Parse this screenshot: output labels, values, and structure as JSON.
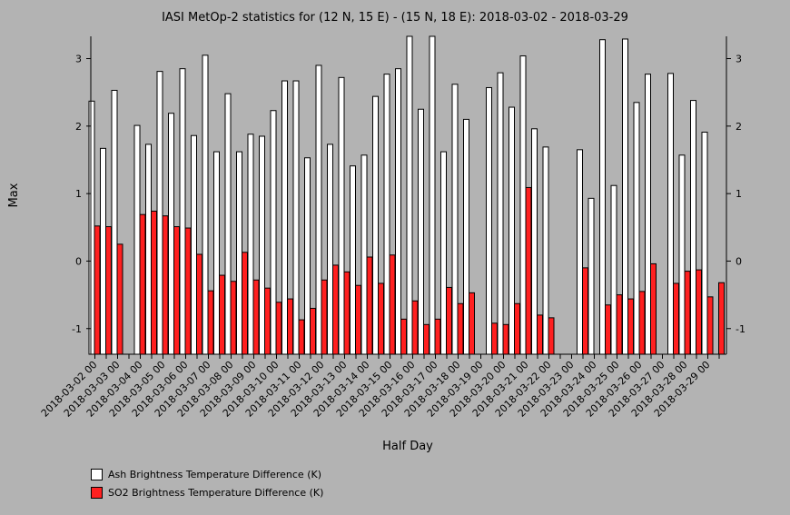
{
  "chart_data": {
    "type": "bar",
    "title": "IASI MetOp-2 statistics for (12 N, 15 E) - (15 N, 18 E): 2018-03-02 - 2018-03-29",
    "xlabel": "Half Day",
    "ylabel": "Max",
    "ylim": [
      -1.38,
      3.33
    ],
    "yticks": [
      -1,
      0,
      1,
      2,
      3
    ],
    "grid": false,
    "legend_position": "bottom-left",
    "categories": [
      "2018-03-02 00",
      "2018-03-02 12",
      "2018-03-03 00",
      "2018-03-03 12",
      "2018-03-04 00",
      "2018-03-04 12",
      "2018-03-05 00",
      "2018-03-05 12",
      "2018-03-06 00",
      "2018-03-06 12",
      "2018-03-07 00",
      "2018-03-07 12",
      "2018-03-08 00",
      "2018-03-08 12",
      "2018-03-09 00",
      "2018-03-09 12",
      "2018-03-10 00",
      "2018-03-10 12",
      "2018-03-11 00",
      "2018-03-11 12",
      "2018-03-12 00",
      "2018-03-12 12",
      "2018-03-13 00",
      "2018-03-13 12",
      "2018-03-14 00",
      "2018-03-14 12",
      "2018-03-15 00",
      "2018-03-15 12",
      "2018-03-16 00",
      "2018-03-16 12",
      "2018-03-17 00",
      "2018-03-17 12",
      "2018-03-18 00",
      "2018-03-18 12",
      "2018-03-19 00",
      "2018-03-19 12",
      "2018-03-20 00",
      "2018-03-20 12",
      "2018-03-21 00",
      "2018-03-21 12",
      "2018-03-22 00",
      "2018-03-22 12",
      "2018-03-23 00",
      "2018-03-23 12",
      "2018-03-24 00",
      "2018-03-24 12",
      "2018-03-25 00",
      "2018-03-25 12",
      "2018-03-26 00",
      "2018-03-26 12",
      "2018-03-27 00",
      "2018-03-27 12",
      "2018-03-28 00",
      "2018-03-28 12",
      "2018-03-29 00",
      "2018-03-29 12"
    ],
    "tick_labels": [
      "2018-03-02 00",
      "2018-03-03 00",
      "2018-03-04 00",
      "2018-03-05 00",
      "2018-03-06 00",
      "2018-03-07 00",
      "2018-03-08 00",
      "2018-03-09 00",
      "2018-03-10 00",
      "2018-03-11 00",
      "2018-03-12 00",
      "2018-03-13 00",
      "2018-03-14 00",
      "2018-03-15 00",
      "2018-03-16 00",
      "2018-03-17 00",
      "2018-03-18 00",
      "2018-03-19 00",
      "2018-03-20 00",
      "2018-03-21 00",
      "2018-03-22 00",
      "2018-03-23 00",
      "2018-03-24 00",
      "2018-03-25 00",
      "2018-03-26 00",
      "2018-03-27 00",
      "2018-03-28 00",
      "2018-03-29 00"
    ],
    "series": [
      {
        "name": "Ash Brightness Temperature Difference (K)",
        "color": "#ffffff",
        "values": [
          2.37,
          1.67,
          2.53,
          null,
          2.01,
          1.73,
          2.81,
          2.19,
          2.85,
          1.86,
          3.05,
          1.62,
          2.48,
          1.62,
          1.88,
          1.85,
          2.23,
          2.67,
          2.67,
          1.53,
          2.9,
          1.73,
          2.72,
          1.41,
          1.57,
          2.44,
          2.77,
          2.85,
          3.33,
          2.25,
          3.33,
          1.62,
          2.62,
          2.1,
          null,
          2.57,
          2.79,
          2.28,
          3.04,
          1.96,
          1.69,
          null,
          null,
          1.65,
          0.93,
          3.28,
          1.12,
          3.29,
          2.35,
          2.77,
          null,
          2.78,
          1.57,
          2.38,
          1.91,
          null
        ]
      },
      {
        "name": "SO2 Brightness Temperature Difference (K)",
        "color": "#ff2020",
        "values": [
          0.52,
          0.51,
          0.25,
          null,
          0.69,
          0.74,
          0.67,
          0.51,
          0.49,
          0.1,
          -0.44,
          -0.21,
          -0.3,
          0.13,
          -0.28,
          -0.4,
          -0.61,
          -0.56,
          -0.87,
          -0.7,
          -0.28,
          -0.06,
          -0.16,
          -0.36,
          0.06,
          -0.33,
          0.09,
          -0.86,
          -0.59,
          -0.94,
          -0.86,
          -0.39,
          -0.63,
          -0.47,
          null,
          -0.92,
          -0.94,
          -0.63,
          1.09,
          -0.8,
          -0.84,
          null,
          null,
          -0.1,
          null,
          -0.65,
          -0.5,
          -0.56,
          -0.45,
          -0.04,
          null,
          -0.33,
          -0.15,
          -0.13,
          -0.53,
          -0.32
        ]
      }
    ]
  }
}
